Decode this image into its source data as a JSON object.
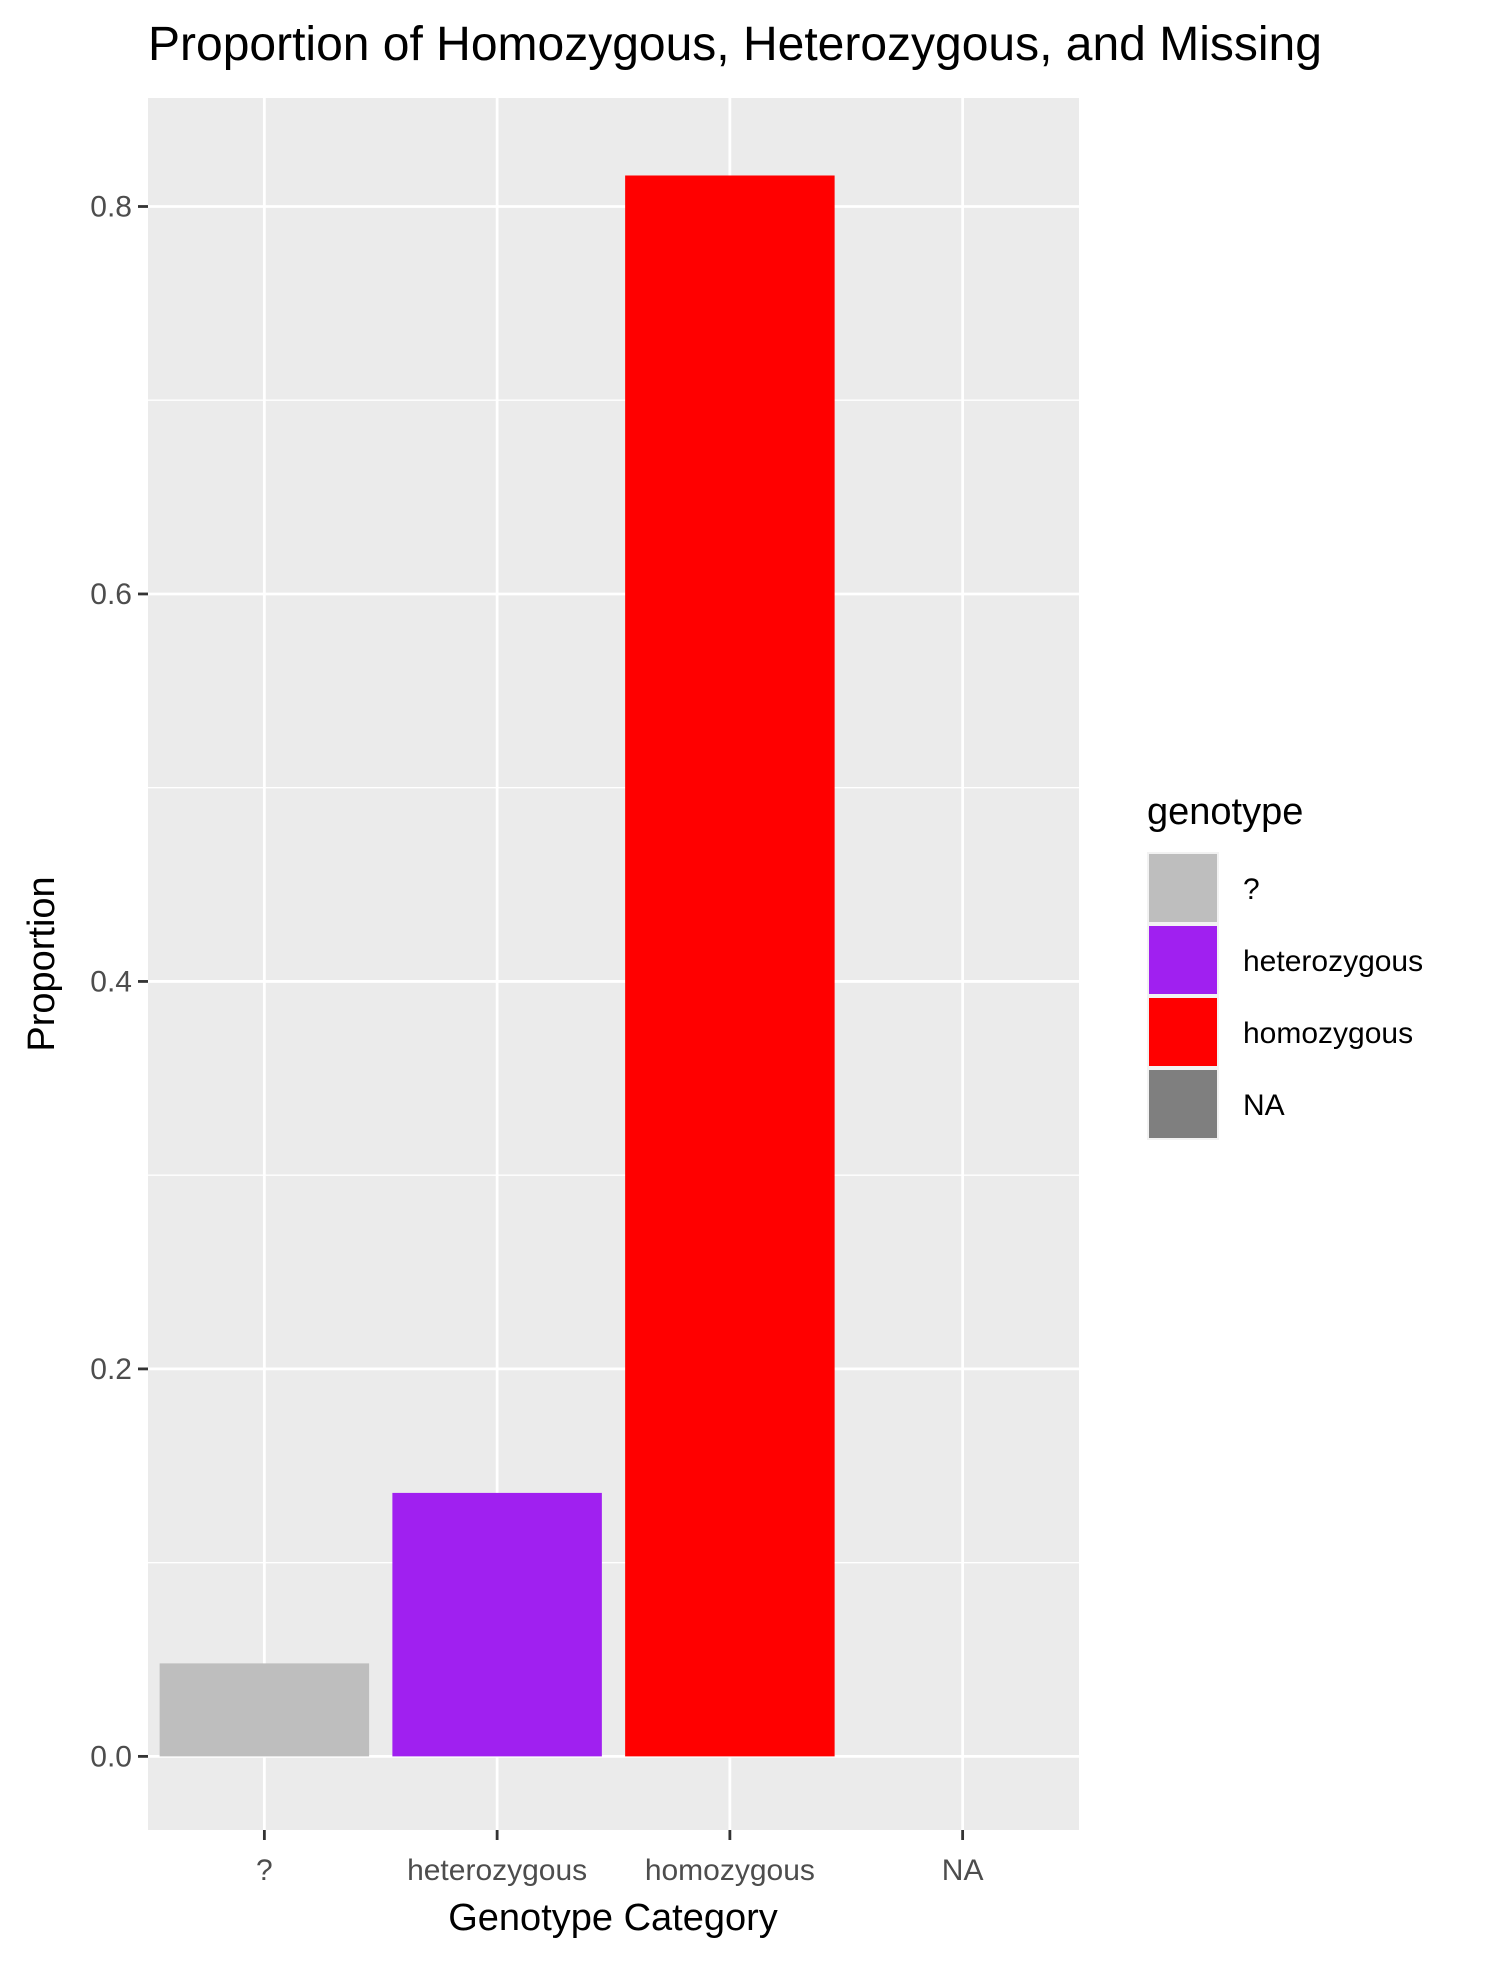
{
  "chart_data": {
    "type": "bar",
    "title": "Proportion of Homozygous, Heterozygous, and Missing",
    "xlabel": "Genotype Category",
    "ylabel": "Proportion",
    "categories": [
      "?",
      "heterozygous",
      "homozygous",
      "NA"
    ],
    "values": [
      0.048,
      0.136,
      0.816,
      0
    ],
    "colors": [
      "#bebebe",
      "#a020f0",
      "#ff0000",
      "#7f7f7f"
    ],
    "ylim": [
      -0.038,
      0.856
    ],
    "yticks": [
      0.0,
      0.2,
      0.4,
      0.6,
      0.8
    ],
    "ytick_labels": [
      "0.0",
      "0.2",
      "0.4",
      "0.6",
      "0.8"
    ],
    "grid": true,
    "panel_background": "#ebebeb",
    "legend": {
      "title": "genotype",
      "placement": "right",
      "entries": [
        {
          "label": "?",
          "color": "#bebebe"
        },
        {
          "label": "heterozygous",
          "color": "#a020f0"
        },
        {
          "label": "homozygous",
          "color": "#ff0000"
        },
        {
          "label": "NA",
          "color": "#7f7f7f"
        }
      ]
    }
  }
}
